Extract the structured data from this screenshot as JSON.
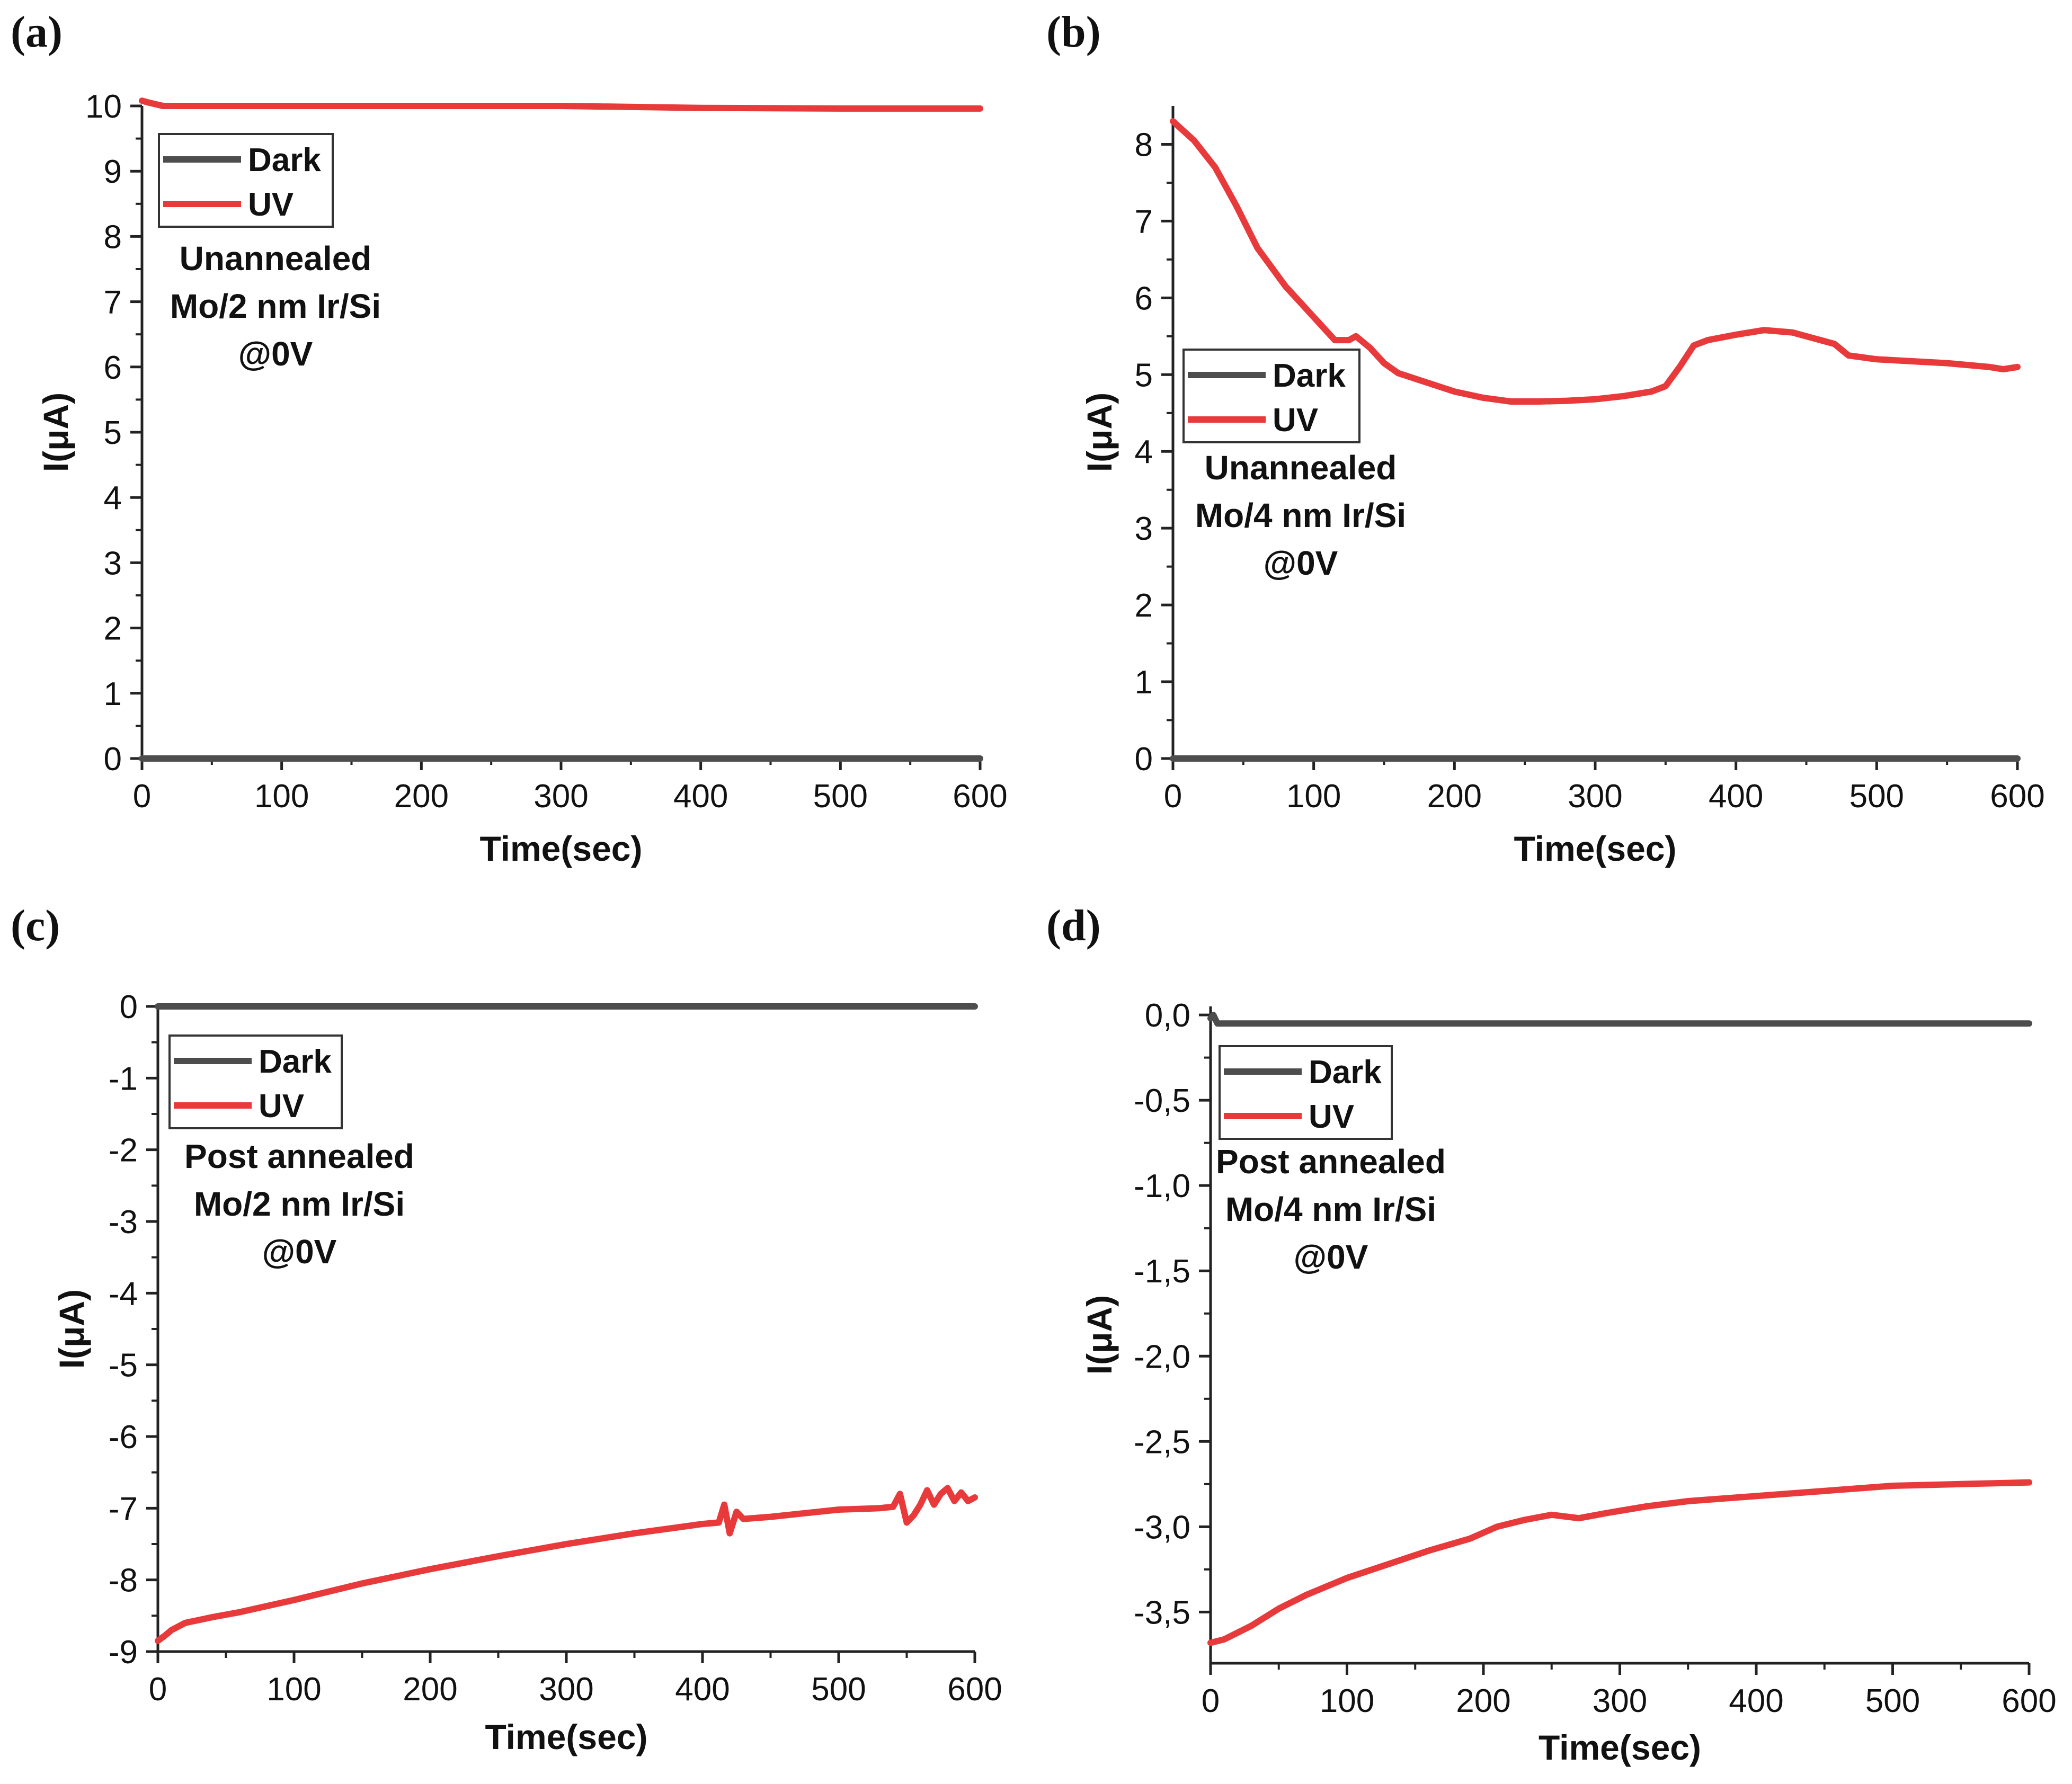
{
  "figure": {
    "colors": {
      "dark": "#4d4d4d",
      "uv": "#e8393b",
      "axis": "#222222"
    }
  },
  "chart_data": [
    {
      "panel": "(a)",
      "type": "line",
      "xlabel": "Time(sec)",
      "ylabel": "I(μA)",
      "xlim": [
        0,
        600
      ],
      "ylim": [
        0,
        10
      ],
      "xticks": [
        "0",
        "100",
        "200",
        "300",
        "400",
        "500",
        "600"
      ],
      "yticks": [
        "0",
        "1",
        "2",
        "3",
        "4",
        "5",
        "6",
        "7",
        "8",
        "9",
        "10"
      ],
      "legend": [
        "Dark",
        "UV"
      ],
      "annotation": [
        "Unannealed",
        "Mo/2 nm Ir/Si",
        "@0V"
      ],
      "series": [
        {
          "name": "Dark",
          "x": [
            0,
            600
          ],
          "y": [
            0,
            0
          ]
        },
        {
          "name": "UV",
          "x": [
            0,
            5,
            15,
            50,
            100,
            200,
            300,
            400,
            500,
            600
          ],
          "y": [
            10.08,
            10.05,
            10.0,
            10.0,
            10.0,
            10.0,
            10.0,
            9.97,
            9.96,
            9.96
          ]
        }
      ]
    },
    {
      "panel": "(b)",
      "type": "line",
      "xlabel": "Time(sec)",
      "ylabel": "I(μA)",
      "xlim": [
        0,
        600
      ],
      "ylim": [
        0,
        8.5
      ],
      "xticks": [
        "0",
        "100",
        "200",
        "300",
        "400",
        "500",
        "600"
      ],
      "yticks": [
        "0",
        "1",
        "2",
        "3",
        "4",
        "5",
        "6",
        "7",
        "8"
      ],
      "legend": [
        "Dark",
        "UV"
      ],
      "annotation": [
        "Unannealed",
        "Mo/4 nm Ir/Si",
        "@0V"
      ],
      "series": [
        {
          "name": "Dark",
          "x": [
            0,
            600
          ],
          "y": [
            0,
            0
          ]
        },
        {
          "name": "UV",
          "x": [
            0,
            15,
            30,
            45,
            60,
            80,
            100,
            115,
            125,
            130,
            140,
            150,
            160,
            180,
            200,
            220,
            240,
            260,
            280,
            300,
            320,
            340,
            350,
            360,
            370,
            380,
            400,
            420,
            440,
            460,
            470,
            480,
            500,
            520,
            550,
            580,
            590,
            600
          ],
          "y": [
            8.3,
            8.05,
            7.7,
            7.2,
            6.65,
            6.15,
            5.75,
            5.45,
            5.45,
            5.5,
            5.35,
            5.15,
            5.02,
            4.9,
            4.78,
            4.7,
            4.65,
            4.65,
            4.66,
            4.68,
            4.72,
            4.78,
            4.85,
            5.1,
            5.38,
            5.45,
            5.52,
            5.58,
            5.55,
            5.45,
            5.4,
            5.25,
            5.2,
            5.18,
            5.15,
            5.1,
            5.07,
            5.1
          ]
        }
      ]
    },
    {
      "panel": "(c)",
      "type": "line",
      "xlabel": "Time(sec)",
      "ylabel": "I(μA)",
      "xlim": [
        0,
        600
      ],
      "ylim": [
        -9,
        0
      ],
      "xticks": [
        "0",
        "100",
        "200",
        "300",
        "400",
        "500",
        "600"
      ],
      "yticks": [
        "0",
        "-1",
        "-2",
        "-3",
        "-4",
        "-5",
        "-6",
        "-7",
        "-8",
        "-9"
      ],
      "legend": [
        "Dark",
        "UV"
      ],
      "annotation": [
        "Post annealed",
        "Mo/2 nm Ir/Si",
        "@0V"
      ],
      "series": [
        {
          "name": "Dark",
          "x": [
            0,
            600
          ],
          "y": [
            0,
            0
          ]
        },
        {
          "name": "UV",
          "x": [
            0,
            5,
            10,
            20,
            40,
            60,
            100,
            150,
            200,
            250,
            300,
            350,
            400,
            412,
            416,
            420,
            425,
            430,
            450,
            500,
            530,
            540,
            545,
            550,
            555,
            560,
            565,
            570,
            575,
            580,
            585,
            590,
            595,
            600
          ],
          "y": [
            -8.85,
            -8.78,
            -8.7,
            -8.6,
            -8.52,
            -8.45,
            -8.28,
            -8.05,
            -7.85,
            -7.67,
            -7.5,
            -7.35,
            -7.22,
            -7.2,
            -6.95,
            -7.35,
            -7.05,
            -7.15,
            -7.12,
            -7.02,
            -7.0,
            -6.98,
            -6.8,
            -7.2,
            -7.1,
            -6.95,
            -6.75,
            -6.95,
            -6.8,
            -6.72,
            -6.9,
            -6.78,
            -6.9,
            -6.85
          ]
        }
      ]
    },
    {
      "panel": "(d)",
      "type": "line",
      "xlabel": "Time(sec)",
      "ylabel": "I(μA)",
      "xlim": [
        0,
        600
      ],
      "ylim": [
        -3.8,
        0.05
      ],
      "xticks": [
        "0",
        "100",
        "200",
        "300",
        "400",
        "500",
        "600"
      ],
      "yticks": [
        "0,0",
        "-0,5",
        "-1,0",
        "-1,5",
        "-2,0",
        "-2,5",
        "-3,0",
        "-3,5"
      ],
      "legend": [
        "Dark",
        "UV"
      ],
      "annotation": [
        "Post annealed",
        "Mo/4 nm Ir/Si",
        "@0V"
      ],
      "series": [
        {
          "name": "Dark",
          "x": [
            0,
            2,
            5,
            600
          ],
          "y": [
            -0.02,
            0.0,
            -0.05,
            -0.05
          ]
        },
        {
          "name": "UV",
          "x": [
            0,
            10,
            30,
            50,
            70,
            100,
            130,
            160,
            190,
            210,
            230,
            250,
            270,
            290,
            320,
            350,
            400,
            450,
            500,
            550,
            600
          ],
          "y": [
            -3.68,
            -3.66,
            -3.58,
            -3.48,
            -3.4,
            -3.3,
            -3.22,
            -3.14,
            -3.07,
            -3.0,
            -2.96,
            -2.93,
            -2.95,
            -2.92,
            -2.88,
            -2.85,
            -2.82,
            -2.79,
            -2.76,
            -2.75,
            -2.74
          ]
        }
      ]
    }
  ]
}
